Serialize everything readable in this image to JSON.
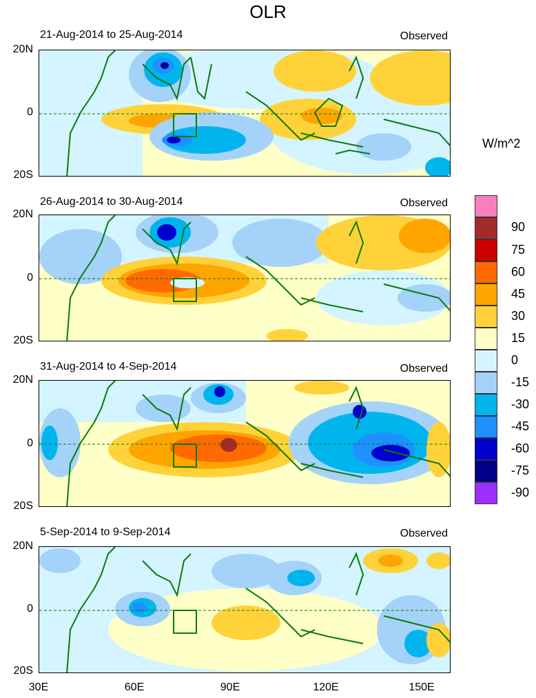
{
  "title": "OLR",
  "units": "W/m^2",
  "panels": [
    {
      "date_range": "21-Aug-2014 to 25-Aug-2014",
      "tag": "Observed"
    },
    {
      "date_range": "26-Aug-2014 to 30-Aug-2014",
      "tag": "Observed"
    },
    {
      "date_range": "31-Aug-2014 to 4-Sep-2014",
      "tag": "Observed"
    },
    {
      "date_range": "5-Sep-2014 to 9-Sep-2014",
      "tag": "Observed"
    }
  ],
  "lat_labels": [
    "20N",
    "0",
    "20S"
  ],
  "lon_labels": [
    "30E",
    "60E",
    "90E",
    "120E",
    "150E"
  ],
  "colorbar": {
    "labels": [
      "90",
      "75",
      "60",
      "45",
      "30",
      "15",
      "0",
      "-15",
      "-30",
      "-45",
      "-60",
      "-75",
      "-90"
    ],
    "colors": [
      "#f77fbf",
      "#a52a2a",
      "#cc0000",
      "#ff6a00",
      "#ffa500",
      "#ffd23a",
      "#ffffc8",
      "#d4f4ff",
      "#a5d2f8",
      "#00b5ee",
      "#1e90ff",
      "#0000cd",
      "#00008b",
      "#9b30ff"
    ]
  }
}
